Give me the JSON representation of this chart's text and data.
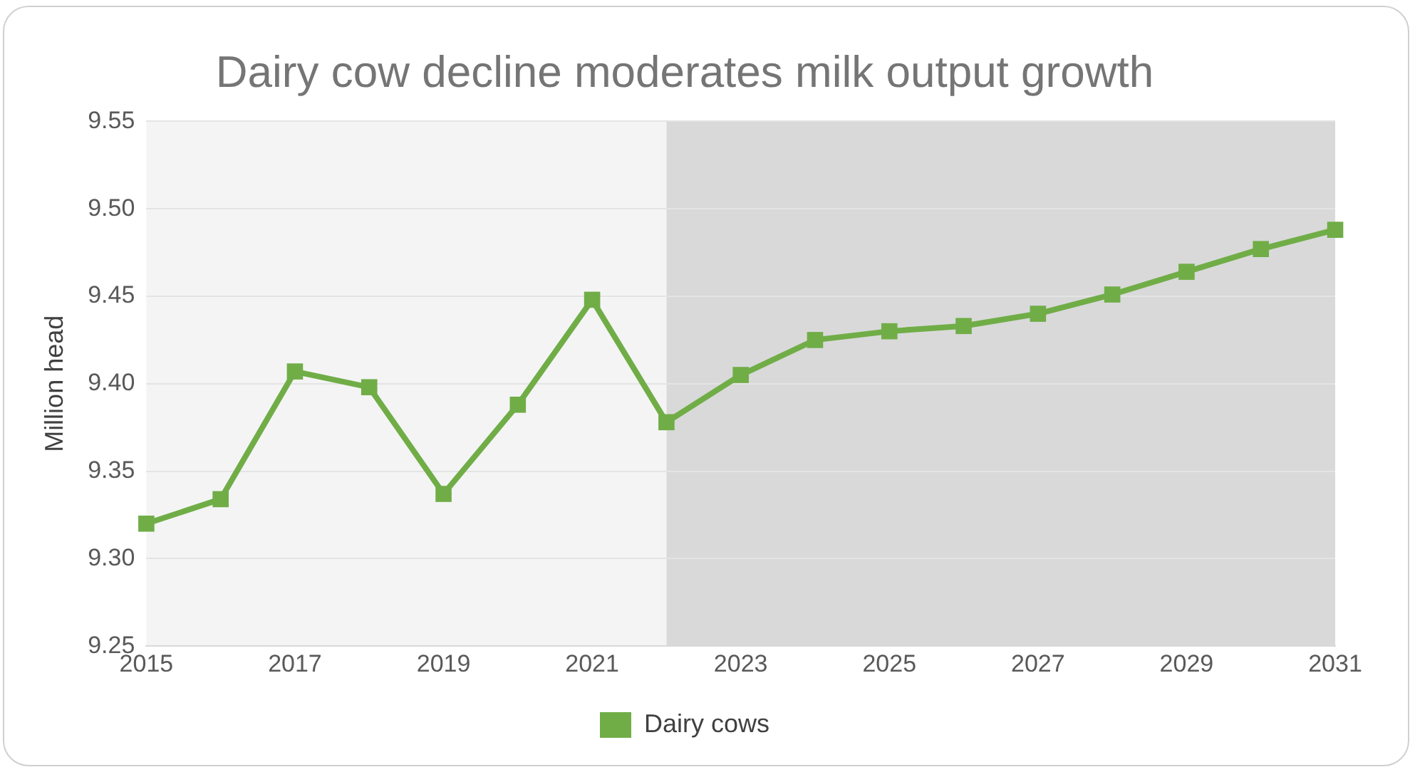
{
  "chart_data": {
    "type": "line",
    "title": "Dairy cow decline moderates milk output growth",
    "ylabel": "Million head",
    "x": [
      2015,
      2016,
      2017,
      2018,
      2019,
      2020,
      2021,
      2022,
      2023,
      2024,
      2025,
      2026,
      2027,
      2028,
      2029,
      2030,
      2031
    ],
    "series": [
      {
        "name": "Dairy cows",
        "color": "#70ad47",
        "values": [
          9.32,
          9.334,
          9.407,
          9.398,
          9.337,
          9.388,
          9.448,
          9.378,
          9.405,
          9.425,
          9.43,
          9.433,
          9.44,
          9.451,
          9.464,
          9.477,
          9.488
        ]
      }
    ],
    "xlim": [
      2015,
      2031
    ],
    "xticks": [
      2015,
      2017,
      2019,
      2021,
      2023,
      2025,
      2027,
      2029,
      2031
    ],
    "ylim": [
      9.25,
      9.55
    ],
    "yticks": [
      {
        "value": 9.25,
        "label": "9.25"
      },
      {
        "value": 9.3,
        "label": "9.30"
      },
      {
        "value": 9.35,
        "label": "9.35"
      },
      {
        "value": 9.4,
        "label": "9.40"
      },
      {
        "value": 9.45,
        "label": "9.45"
      },
      {
        "value": 9.5,
        "label": "9.50"
      },
      {
        "value": 9.55,
        "label": "9.55"
      }
    ],
    "bands": [
      {
        "axis": "x",
        "from": 2015,
        "to": 2022,
        "color": "#f4f4f4"
      },
      {
        "axis": "x",
        "from": 2022,
        "to": 2031,
        "color": "#d9d9d9"
      }
    ],
    "grid": "y",
    "legend": "bottom",
    "marker": "square",
    "line_style": "solid"
  }
}
